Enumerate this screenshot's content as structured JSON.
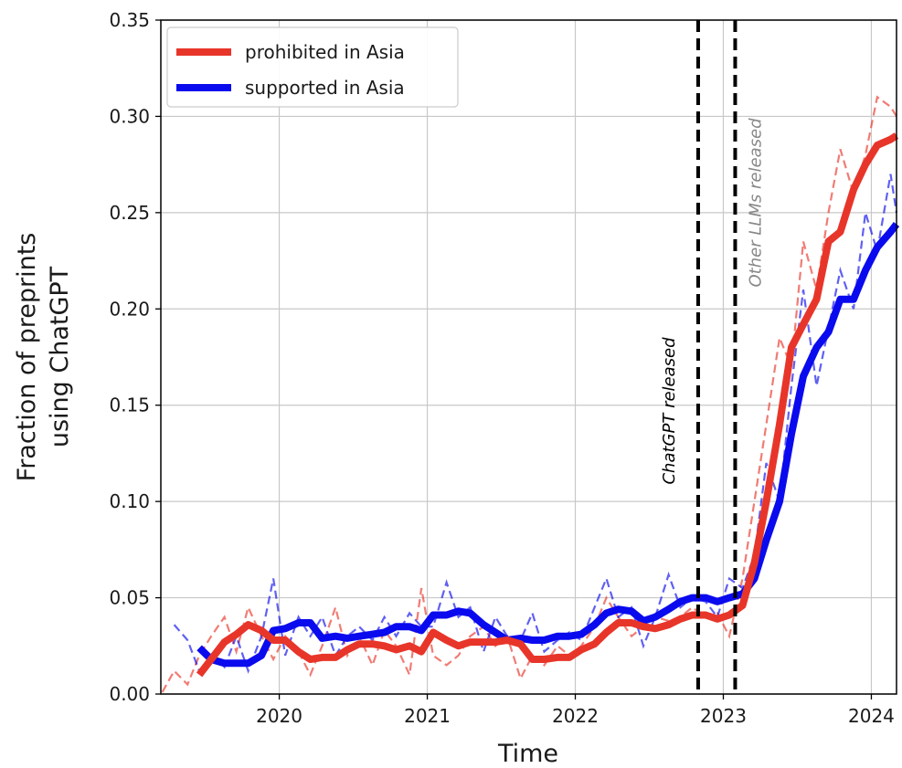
{
  "chart_data": {
    "type": "line",
    "xlabel": "Time",
    "ylabel_lines": [
      "Fraction of preprints",
      "using ChatGPT"
    ],
    "xlim": [
      2019.2,
      2024.17
    ],
    "ylim": [
      0,
      0.35
    ],
    "xticks": [
      2020,
      2021,
      2022,
      2023,
      2024
    ],
    "xtick_labels": [
      "2020",
      "2021",
      "2022",
      "2023",
      "2024"
    ],
    "yticks": [
      0,
      0.05,
      0.1,
      0.15,
      0.2,
      0.25,
      0.3,
      0.35
    ],
    "ytick_labels": [
      "0.00",
      "0.05",
      "0.10",
      "0.15",
      "0.20",
      "0.25",
      "0.30",
      "0.35"
    ],
    "grid": true,
    "legend_position": "top-left",
    "vlines": [
      {
        "x": 2022.83,
        "label": "ChatGPT released",
        "color": "#000000",
        "label_side": "left"
      },
      {
        "x": 2023.08,
        "label": "Other LLMs released",
        "color": "#888888",
        "label_side": "right"
      }
    ],
    "series": [
      {
        "name": "prohibited in Asia",
        "color": "#e8352a",
        "raw_x": [
          2019.21,
          2019.29,
          2019.38,
          2019.46,
          2019.54,
          2019.63,
          2019.71,
          2019.79,
          2019.88,
          2019.96,
          2020.04,
          2020.13,
          2020.21,
          2020.29,
          2020.38,
          2020.46,
          2020.54,
          2020.63,
          2020.71,
          2020.79,
          2020.88,
          2020.96,
          2021.04,
          2021.13,
          2021.21,
          2021.29,
          2021.38,
          2021.46,
          2021.54,
          2021.63,
          2021.71,
          2021.79,
          2021.88,
          2021.96,
          2022.04,
          2022.13,
          2022.21,
          2022.29,
          2022.38,
          2022.46,
          2022.54,
          2022.63,
          2022.71,
          2022.79,
          2022.88,
          2022.96,
          2023.04,
          2023.13,
          2023.21,
          2023.29,
          2023.38,
          2023.46,
          2023.54,
          2023.63,
          2023.71,
          2023.79,
          2023.88,
          2023.96,
          2024.04,
          2024.13,
          2024.17
        ],
        "raw": [
          0.001,
          0.012,
          0.005,
          0.02,
          0.03,
          0.04,
          0.022,
          0.045,
          0.03,
          0.018,
          0.03,
          0.022,
          0.01,
          0.025,
          0.045,
          0.02,
          0.03,
          0.015,
          0.033,
          0.025,
          0.01,
          0.055,
          0.02,
          0.015,
          0.02,
          0.03,
          0.035,
          0.025,
          0.03,
          0.008,
          0.02,
          0.015,
          0.025,
          0.02,
          0.025,
          0.035,
          0.05,
          0.04,
          0.03,
          0.035,
          0.04,
          0.038,
          0.04,
          0.045,
          0.04,
          0.042,
          0.03,
          0.06,
          0.1,
          0.14,
          0.185,
          0.17,
          0.235,
          0.21,
          0.25,
          0.283,
          0.26,
          0.28,
          0.31,
          0.305,
          0.3
        ],
        "smooth_x": [
          2019.46,
          2019.54,
          2019.63,
          2019.71,
          2019.79,
          2019.88,
          2019.96,
          2020.04,
          2020.13,
          2020.21,
          2020.29,
          2020.38,
          2020.46,
          2020.54,
          2020.63,
          2020.71,
          2020.79,
          2020.88,
          2020.96,
          2021.04,
          2021.13,
          2021.21,
          2021.29,
          2021.38,
          2021.46,
          2021.54,
          2021.63,
          2021.71,
          2021.79,
          2021.88,
          2021.96,
          2022.04,
          2022.13,
          2022.21,
          2022.29,
          2022.38,
          2022.46,
          2022.54,
          2022.63,
          2022.71,
          2022.79,
          2022.88,
          2022.96,
          2023.04,
          2023.13,
          2023.21,
          2023.29,
          2023.38,
          2023.46,
          2023.54,
          2023.63,
          2023.71,
          2023.79,
          2023.88,
          2023.96,
          2024.04,
          2024.13,
          2024.17
        ],
        "smooth": [
          0.01,
          0.018,
          0.027,
          0.031,
          0.036,
          0.033,
          0.028,
          0.028,
          0.022,
          0.018,
          0.019,
          0.019,
          0.023,
          0.026,
          0.026,
          0.025,
          0.023,
          0.025,
          0.022,
          0.032,
          0.028,
          0.025,
          0.027,
          0.027,
          0.027,
          0.028,
          0.026,
          0.018,
          0.018,
          0.019,
          0.019,
          0.023,
          0.026,
          0.032,
          0.037,
          0.037,
          0.035,
          0.034,
          0.036,
          0.039,
          0.041,
          0.041,
          0.039,
          0.041,
          0.046,
          0.068,
          0.1,
          0.14,
          0.18,
          0.192,
          0.205,
          0.235,
          0.24,
          0.262,
          0.275,
          0.285,
          0.288,
          0.29
        ]
      },
      {
        "name": "supported in Asia",
        "color": "#0a0aee",
        "raw_x": [
          2019.29,
          2019.38,
          2019.46,
          2019.54,
          2019.63,
          2019.71,
          2019.79,
          2019.88,
          2019.96,
          2020.04,
          2020.13,
          2020.21,
          2020.29,
          2020.38,
          2020.46,
          2020.54,
          2020.63,
          2020.71,
          2020.79,
          2020.88,
          2020.96,
          2021.04,
          2021.13,
          2021.21,
          2021.29,
          2021.38,
          2021.46,
          2021.54,
          2021.63,
          2021.71,
          2021.79,
          2021.88,
          2021.96,
          2022.04,
          2022.13,
          2022.21,
          2022.29,
          2022.38,
          2022.46,
          2022.54,
          2022.63,
          2022.71,
          2022.79,
          2022.88,
          2022.96,
          2023.04,
          2023.13,
          2023.21,
          2023.29,
          2023.38,
          2023.46,
          2023.54,
          2023.63,
          2023.71,
          2023.79,
          2023.88,
          2023.96,
          2024.04,
          2024.13,
          2024.17
        ],
        "raw": [
          0.036,
          0.028,
          0.012,
          0.02,
          0.014,
          0.03,
          0.012,
          0.03,
          0.06,
          0.02,
          0.04,
          0.03,
          0.04,
          0.02,
          0.03,
          0.035,
          0.028,
          0.04,
          0.03,
          0.042,
          0.035,
          0.035,
          0.058,
          0.04,
          0.045,
          0.022,
          0.04,
          0.03,
          0.028,
          0.042,
          0.022,
          0.028,
          0.032,
          0.028,
          0.045,
          0.06,
          0.04,
          0.045,
          0.025,
          0.04,
          0.062,
          0.045,
          0.05,
          0.048,
          0.04,
          0.06,
          0.055,
          0.072,
          0.12,
          0.1,
          0.16,
          0.21,
          0.16,
          0.19,
          0.22,
          0.2,
          0.25,
          0.23,
          0.27,
          0.25
        ],
        "smooth_x": [
          2019.46,
          2019.54,
          2019.63,
          2019.71,
          2019.79,
          2019.88,
          2019.96,
          2020.04,
          2020.13,
          2020.21,
          2020.29,
          2020.38,
          2020.46,
          2020.54,
          2020.63,
          2020.71,
          2020.79,
          2020.88,
          2020.96,
          2021.04,
          2021.13,
          2021.21,
          2021.29,
          2021.38,
          2021.46,
          2021.54,
          2021.63,
          2021.71,
          2021.79,
          2021.88,
          2021.96,
          2022.04,
          2022.13,
          2022.21,
          2022.29,
          2022.38,
          2022.46,
          2022.54,
          2022.63,
          2022.71,
          2022.79,
          2022.88,
          2022.96,
          2023.04,
          2023.13,
          2023.21,
          2023.29,
          2023.38,
          2023.46,
          2023.54,
          2023.63,
          2023.71,
          2023.79,
          2023.88,
          2023.96,
          2024.04,
          2024.13,
          2024.17
        ],
        "smooth": [
          0.024,
          0.018,
          0.016,
          0.016,
          0.016,
          0.02,
          0.033,
          0.034,
          0.037,
          0.037,
          0.029,
          0.03,
          0.029,
          0.03,
          0.031,
          0.032,
          0.035,
          0.035,
          0.033,
          0.041,
          0.041,
          0.043,
          0.042,
          0.036,
          0.032,
          0.028,
          0.029,
          0.028,
          0.028,
          0.03,
          0.03,
          0.031,
          0.036,
          0.042,
          0.044,
          0.043,
          0.038,
          0.04,
          0.044,
          0.048,
          0.05,
          0.05,
          0.048,
          0.05,
          0.052,
          0.06,
          0.08,
          0.1,
          0.135,
          0.165,
          0.18,
          0.188,
          0.205,
          0.205,
          0.22,
          0.232,
          0.24,
          0.244
        ]
      }
    ]
  }
}
